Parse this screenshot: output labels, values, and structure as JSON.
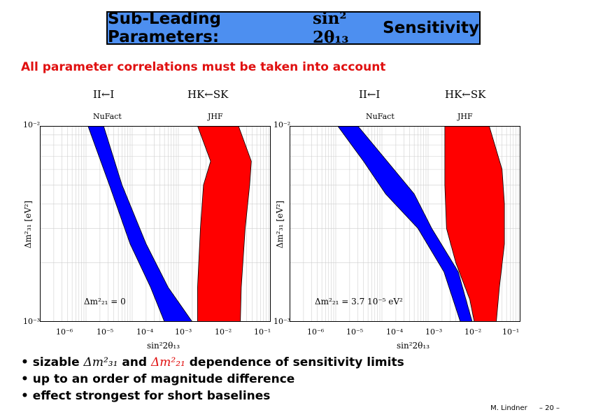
{
  "title": {
    "prefix": "Sub-Leading Parameters:",
    "math": "sin² 2θ₁₃",
    "suffix": "Sensitivity"
  },
  "subtitle": "All parameter correlations must be taken into account",
  "panels": [
    {
      "headers": {
        "left": "II←I",
        "right": "HK←SK"
      },
      "labels": {
        "left": "NuFact",
        "right": "JHF"
      },
      "annotation": "Δm²₂₁ = 0",
      "ylabel": "Δm²₃₁ [eV²]",
      "xlabel": "sin²2θ₁₃"
    },
    {
      "headers": {
        "left": "II←I",
        "right": "HK←SK"
      },
      "labels": {
        "left": "NuFact",
        "right": "JHF"
      },
      "annotation": "Δm²₂₁ = 3.7 10⁻⁵ eV²",
      "ylabel": "Δm²₃₁ [eV²]",
      "xlabel": "sin²2θ₁₃"
    }
  ],
  "axes": {
    "y_ticks": [
      "10⁻²",
      "10⁻³"
    ],
    "x_ticks": [
      "10⁻⁶",
      "10⁻⁵",
      "10⁻⁴",
      "10⁻³",
      "10⁻²",
      "10⁻¹"
    ]
  },
  "bullets": [
    {
      "pre": "• sizable",
      "m1": "Δm²₃₁",
      "mid": "and",
      "m2": "Δm²₂₁",
      "post": "dependence of sensitivity limits"
    },
    {
      "text": "• up to an order of magnitude difference"
    },
    {
      "text": "• effect strongest for short baselines"
    }
  ],
  "footer": {
    "author": "M. Lindner",
    "page": "– 20 –"
  },
  "colors": {
    "nufact": "#0000ff",
    "jhf": "#ff0000",
    "title_bg": "#4d8ff0",
    "subtitle": "#e01010"
  },
  "chart_data": [
    {
      "type": "area",
      "xscale": "log",
      "yscale": "log",
      "xlim": [
        1e-06,
        0.1
      ],
      "ylim": [
        0.001,
        0.01
      ],
      "xlabel": "sin²2θ₁₃",
      "ylabel": "Δm²₃₁ [eV²]",
      "grid": true,
      "series": [
        {
          "name": "NuFact",
          "color": "#0000ff",
          "lower": [
            [
              1.1e-05,
              0.01
            ],
            [
              3.2e-05,
              0.005
            ],
            [
              9e-05,
              0.0025
            ],
            [
              0.00025,
              0.0015
            ],
            [
              0.0005,
              0.001
            ]
          ],
          "upper": [
            [
              2.4e-05,
              0.01
            ],
            [
              6e-05,
              0.005
            ],
            [
              0.0002,
              0.0025
            ],
            [
              0.0006,
              0.0015
            ],
            [
              0.002,
              0.001
            ]
          ]
        },
        {
          "name": "JHF",
          "color": "#ff0000",
          "lower": [
            [
              0.0026,
              0.01
            ],
            [
              0.005,
              0.0066
            ],
            [
              0.0035,
              0.005
            ],
            [
              0.003,
              0.003
            ],
            [
              0.0026,
              0.0015
            ],
            [
              0.0026,
              0.001
            ]
          ],
          "upper": [
            [
              0.02,
              0.01
            ],
            [
              0.038,
              0.0066
            ],
            [
              0.035,
              0.005
            ],
            [
              0.028,
              0.003
            ],
            [
              0.023,
              0.0015
            ],
            [
              0.022,
              0.001
            ]
          ]
        }
      ]
    },
    {
      "type": "area",
      "xscale": "log",
      "yscale": "log",
      "xlim": [
        1e-06,
        0.1
      ],
      "ylim": [
        0.001,
        0.01
      ],
      "xlabel": "sin²2θ₁₃",
      "ylabel": "Δm²₃₁ [eV²]",
      "grid": true,
      "series": [
        {
          "name": "NuFact",
          "color": "#0000ff",
          "lower": [
            [
              1.1e-05,
              0.01
            ],
            [
              4e-05,
              0.0066
            ],
            [
              0.00012,
              0.0045
            ],
            [
              0.0006,
              0.003
            ],
            [
              0.0022,
              0.0018
            ],
            [
              0.005,
              0.001
            ]
          ],
          "upper": [
            [
              3e-05,
              0.01
            ],
            [
              0.00013,
              0.0066
            ],
            [
              0.0005,
              0.0045
            ],
            [
              0.0012,
              0.003
            ],
            [
              0.0045,
              0.0018
            ],
            [
              0.009,
              0.001
            ]
          ]
        },
        {
          "name": "JHF",
          "color": "#ff0000",
          "lower": [
            [
              0.0023,
              0.01
            ],
            [
              0.0023,
              0.005
            ],
            [
              0.0025,
              0.003
            ],
            [
              0.004,
              0.002
            ],
            [
              0.008,
              0.0013
            ],
            [
              0.01,
              0.001
            ]
          ],
          "upper": [
            [
              0.021,
              0.01
            ],
            [
              0.04,
              0.006
            ],
            [
              0.045,
              0.004
            ],
            [
              0.045,
              0.0025
            ],
            [
              0.035,
              0.0015
            ],
            [
              0.03,
              0.001
            ]
          ]
        }
      ]
    }
  ]
}
